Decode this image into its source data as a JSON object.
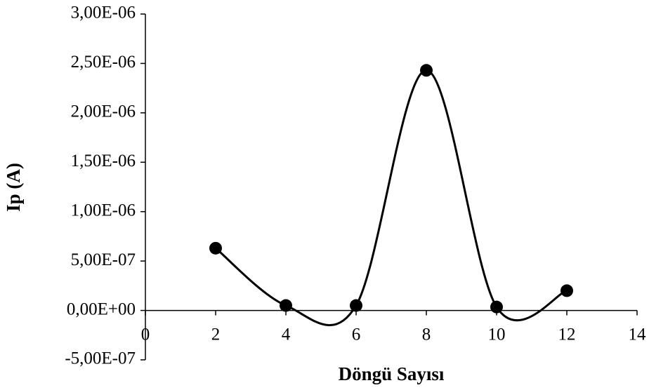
{
  "chart_data": {
    "type": "scatter",
    "smooth": true,
    "x_label": "Döngü Sayısı",
    "y_label": "Ip (A)",
    "series": [
      {
        "name": "Ip",
        "color": "#000000",
        "x": [
          2,
          4,
          6,
          8,
          10,
          12
        ],
        "values": [
          6.3e-07,
          5e-08,
          5e-08,
          2.43e-06,
          3.5e-08,
          2e-07
        ]
      }
    ],
    "xlim": [
      0,
      14
    ],
    "xticks": [
      0,
      2,
      4,
      6,
      8,
      10,
      12,
      14
    ],
    "ylim": [
      -5e-07,
      3e-06
    ],
    "yticks": [
      {
        "value": -5e-07,
        "label": "-5,00E-07"
      },
      {
        "value": 0,
        "label": "0,00E+00"
      },
      {
        "value": 5e-07,
        "label": "5,00E-07"
      },
      {
        "value": 1e-06,
        "label": "1,00E-06"
      },
      {
        "value": 1.5e-06,
        "label": "1,50E-06"
      },
      {
        "value": 2e-06,
        "label": "2,00E-06"
      },
      {
        "value": 2.5e-06,
        "label": "2,50E-06"
      },
      {
        "value": 3e-06,
        "label": "3,00E-06"
      }
    ],
    "grid": false
  }
}
